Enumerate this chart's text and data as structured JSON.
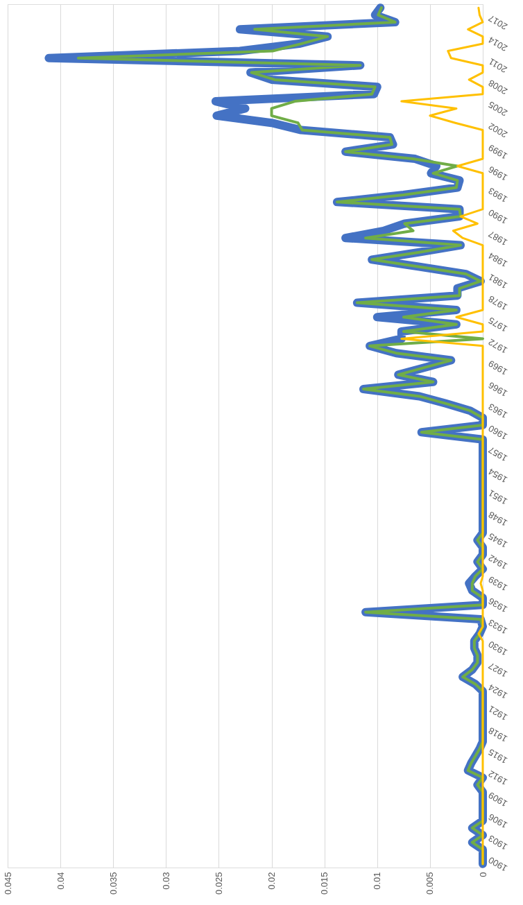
{
  "chart_data": {
    "type": "line",
    "orientation": "horizontal",
    "categories": [
      null,
      null,
      "2017",
      null,
      null,
      "2014",
      null,
      null,
      "2011",
      null,
      null,
      "2008",
      null,
      null,
      "2005",
      null,
      null,
      "2002",
      null,
      null,
      "1999",
      null,
      null,
      "1996",
      null,
      null,
      "1993",
      null,
      null,
      "1990",
      null,
      null,
      "1987",
      null,
      null,
      "1984",
      null,
      null,
      "1981",
      null,
      null,
      "1978",
      null,
      null,
      "1975",
      null,
      null,
      "1972",
      null,
      null,
      "1969",
      null,
      null,
      "1966",
      null,
      null,
      "1963",
      null,
      null,
      "1960",
      null,
      null,
      "1957",
      null,
      null,
      "1954",
      null,
      null,
      "1951",
      null,
      null,
      "1948",
      null,
      null,
      "1945",
      null,
      null,
      "1942",
      null,
      null,
      "1939",
      null,
      null,
      "1936",
      null,
      null,
      "1933",
      null,
      null,
      "1930",
      null,
      null,
      "1927",
      null,
      null,
      "1924",
      null,
      null,
      "1921",
      null,
      null,
      "1918",
      null,
      null,
      "1915",
      null,
      null,
      "1912",
      null,
      null,
      "1909",
      null,
      null,
      "1906",
      null,
      null,
      "1903",
      null,
      null,
      "1900"
    ],
    "series": [
      {
        "color": "#4472c4",
        "values": [
          0.0097,
          0.0102,
          0.0083,
          0.023,
          0.0147,
          0.0174,
          0.023,
          0.0411,
          0.0116,
          0.022,
          0.02,
          0.01,
          0.0103,
          0.0253,
          0.0225,
          0.0252,
          0.02,
          0.0172,
          0.0088,
          0.0085,
          0.013,
          0.0064,
          0.0044,
          0.0049,
          0.0022,
          0.0024,
          0.0075,
          0.0138,
          0.0022,
          0.0022,
          0.0074,
          0.0094,
          0.013,
          0.0021,
          0.0061,
          0.0105,
          0.006,
          0.0016,
          0.0002,
          0.0024,
          0.0024,
          0.0119,
          0.0025,
          0.01,
          0.0025,
          0.0077,
          0.0077,
          0.0107,
          0.0082,
          0.003,
          0.0055,
          0.008,
          0.0047,
          0.0113,
          0.006,
          0.0035,
          0.0012,
          0,
          0,
          0.0058,
          0,
          0,
          0,
          0,
          0,
          0,
          0,
          0,
          0,
          0,
          0,
          0,
          0,
          0,
          0.0005,
          0,
          0,
          0.0005,
          0,
          0.0007,
          0.0013,
          0.001,
          0,
          0,
          0.0111,
          0.0002,
          0,
          0.0003,
          0.0008,
          0.0008,
          0.0005,
          0.0005,
          0.001,
          0.0019,
          0.0007,
          0,
          0,
          0,
          0,
          0,
          0,
          0,
          0,
          0.0003,
          0.0007,
          0.0011,
          0.0014,
          0,
          0.0005,
          0,
          0,
          0,
          0,
          0,
          0.001,
          0,
          0.001,
          0,
          0,
          0
        ]
      },
      {
        "color": "#70ad47",
        "values": [
          0.0096,
          0.0099,
          0.0083,
          0.0216,
          0.0147,
          0.0172,
          0.0199,
          0.0383,
          0.0116,
          0.0219,
          0.0197,
          0.0102,
          0.0105,
          0.0178,
          0.02,
          0.02,
          0.0175,
          0.0171,
          0.0088,
          0.0086,
          0.013,
          0.0066,
          0.0024,
          0.0047,
          0.0024,
          0.0025,
          0.0075,
          0.0138,
          0.0022,
          0.0021,
          0.0074,
          0.0066,
          0.0111,
          0.0021,
          0.0061,
          0.0105,
          0.006,
          0.0016,
          0.0002,
          0.0022,
          0.0022,
          0.0119,
          0.0025,
          0.0075,
          0.0025,
          0.0075,
          0,
          0.0107,
          0.0082,
          0.003,
          0.0055,
          0.008,
          0.0047,
          0.0113,
          0.006,
          0.0035,
          0.0012,
          0,
          0,
          0.0058,
          0,
          0,
          0,
          0,
          0,
          0,
          0,
          0,
          0,
          0,
          0,
          0,
          0,
          0,
          0.0005,
          0,
          0,
          0.0005,
          0,
          0.0007,
          0.001,
          0.001,
          0,
          0,
          0.0111,
          0.0002,
          0,
          0.0003,
          0.0008,
          0.0008,
          0.0005,
          0.0005,
          0.001,
          0.0019,
          0.0007,
          0,
          0,
          0,
          0,
          0,
          0,
          0,
          0,
          0.0003,
          0.0007,
          0.0011,
          0.0014,
          0,
          0.0005,
          0,
          0,
          0,
          0,
          0,
          0.001,
          0,
          0.001,
          0,
          0,
          0
        ]
      },
      {
        "color": "#ffc000",
        "values": [
          0.0004,
          0.0003,
          0,
          0.0014,
          0,
          0,
          0.0033,
          0.003,
          0,
          0,
          0.0013,
          0,
          0,
          0.0077,
          0.0025,
          0.005,
          0.0026,
          0,
          0,
          0,
          0,
          0,
          0.0024,
          0,
          0,
          0,
          0,
          0,
          0,
          0.0021,
          0.0005,
          0.0028,
          0.0019,
          0,
          0,
          0,
          0,
          0,
          0,
          0,
          0,
          0,
          0,
          0.0025,
          0,
          0,
          0.0077,
          0,
          0,
          0,
          0,
          0,
          0,
          0,
          0,
          0,
          0,
          0,
          0,
          0,
          0,
          0,
          0,
          0,
          0,
          0,
          0,
          0,
          0,
          0,
          0,
          0,
          0,
          0,
          0,
          0,
          0,
          0,
          0,
          0,
          0.0002,
          0,
          0,
          0,
          0,
          0,
          0,
          0.0004,
          0,
          0,
          0,
          0,
          0,
          0,
          0,
          0,
          0,
          0,
          0,
          0,
          0,
          0,
          0,
          0,
          0,
          0,
          0,
          0,
          0,
          0,
          0,
          0,
          0,
          0,
          0,
          0,
          0,
          0,
          0,
          0
        ]
      }
    ],
    "xlim": [
      0.045,
      0
    ],
    "xticks": [
      0.045,
      0.04,
      0.035,
      0.03,
      0.025,
      0.02,
      0.015,
      0.01,
      0.005,
      0
    ],
    "grid": "x",
    "line_style": "solid",
    "marker": "none"
  }
}
